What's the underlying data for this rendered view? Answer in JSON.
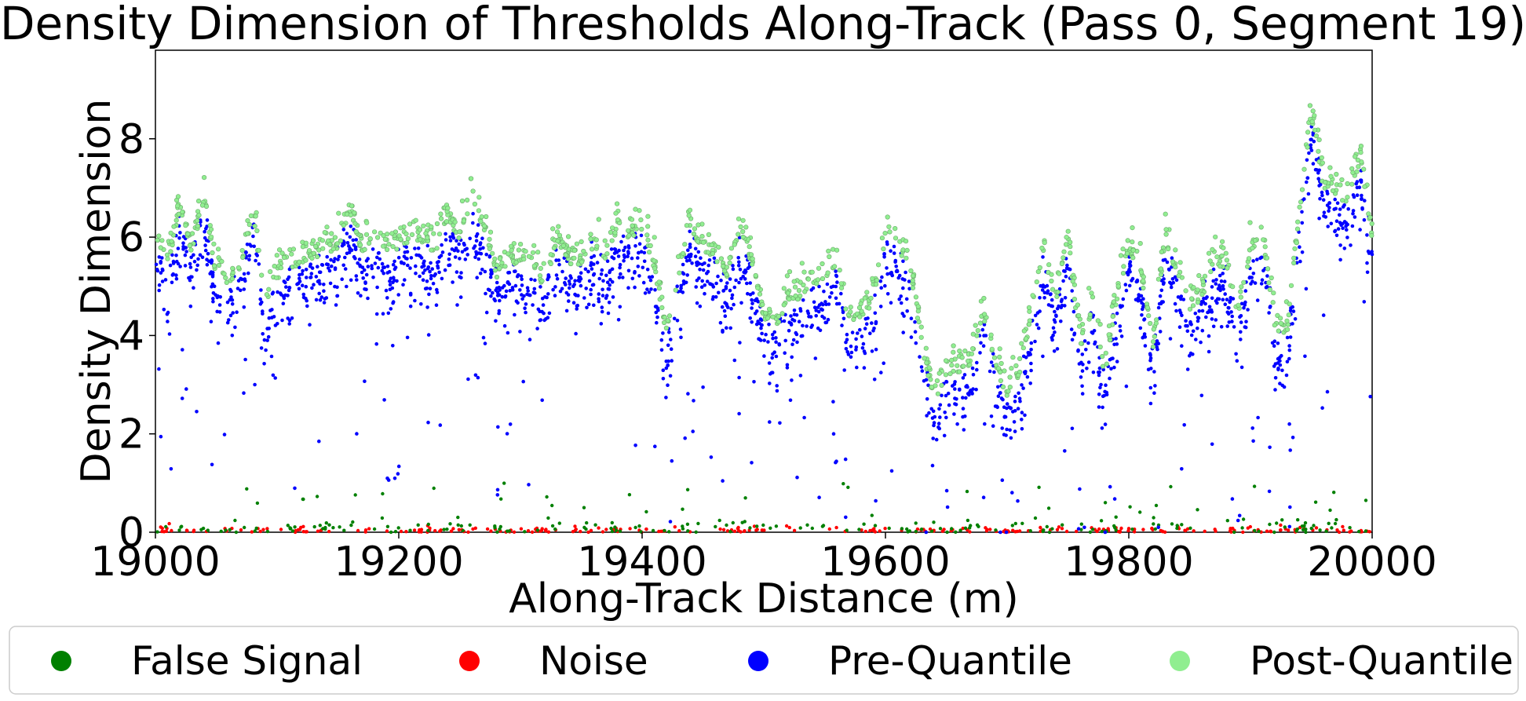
{
  "chart_data": {
    "type": "scatter",
    "title": "Density Dimension of Thresholds Along-Track (Pass 0, Segment 19)",
    "xlabel": "Along-Track Distance (m)",
    "ylabel": "Density Dimension",
    "xlim": [
      19000,
      20000
    ],
    "ylim": [
      0,
      9.8
    ],
    "xticks": [
      19000,
      19200,
      19400,
      19600,
      19800,
      20000
    ],
    "xtick_labels": [
      "19000",
      "19200",
      "19400",
      "19600",
      "19800",
      "20000"
    ],
    "yticks": [
      0,
      2,
      4,
      6,
      8
    ],
    "ytick_labels": [
      "0",
      "2",
      "4",
      "6",
      "8"
    ],
    "grid": false,
    "legend_placement": "bottom-outside",
    "series": [
      {
        "name": "False Signal",
        "color": "#008000",
        "marker": "dot"
      },
      {
        "name": "Noise",
        "color": "#ff0000",
        "marker": "dot"
      },
      {
        "name": "Pre-Quantile",
        "color": "#0000ff",
        "marker": "dot"
      },
      {
        "name": "Post-Quantile",
        "color": "#90ee90",
        "marker": "dot"
      }
    ],
    "trend": {
      "x": [
        19000,
        19010,
        19020,
        19030,
        19040,
        19050,
        19060,
        19070,
        19080,
        19090,
        19100,
        19110,
        19120,
        19130,
        19140,
        19150,
        19160,
        19170,
        19180,
        19190,
        19200,
        19210,
        19220,
        19230,
        19240,
        19250,
        19260,
        19270,
        19280,
        19290,
        19300,
        19310,
        19320,
        19330,
        19340,
        19350,
        19360,
        19370,
        19380,
        19390,
        19400,
        19410,
        19420,
        19430,
        19440,
        19450,
        19460,
        19470,
        19480,
        19490,
        19500,
        19510,
        19520,
        19530,
        19540,
        19550,
        19560,
        19570,
        19580,
        19590,
        19600,
        19610,
        19620,
        19630,
        19640,
        19650,
        19660,
        19670,
        19680,
        19690,
        19700,
        19710,
        19720,
        19730,
        19740,
        19750,
        19760,
        19770,
        19780,
        19790,
        19800,
        19810,
        19820,
        19830,
        19840,
        19850,
        19860,
        19870,
        19880,
        19890,
        19900,
        19910,
        19920,
        19930,
        19940,
        19950,
        19960,
        19970,
        19980,
        19990,
        20000
      ],
      "y": [
        5.8,
        5.3,
        6.3,
        5.5,
        6.6,
        5.0,
        4.8,
        5.2,
        6.3,
        4.4,
        5.0,
        5.2,
        5.3,
        5.4,
        5.5,
        5.6,
        6.3,
        5.5,
        5.8,
        5.5,
        5.6,
        5.8,
        5.7,
        5.5,
        6.2,
        5.8,
        6.6,
        6.0,
        5.0,
        5.3,
        5.3,
        5.2,
        4.8,
        5.8,
        5.3,
        5.3,
        5.6,
        5.4,
        6.0,
        5.8,
        6.0,
        5.2,
        3.8,
        5.0,
        6.0,
        5.5,
        5.4,
        5.0,
        6.0,
        5.3,
        4.2,
        4.0,
        4.5,
        4.6,
        4.8,
        5.0,
        5.3,
        4.0,
        4.2,
        4.5,
        5.8,
        5.6,
        5.2,
        3.6,
        2.5,
        3.0,
        3.0,
        3.2,
        4.3,
        3.2,
        2.6,
        3.0,
        4.2,
        5.5,
        4.5,
        5.8,
        3.5,
        4.3,
        3.0,
        4.5,
        5.6,
        5.0,
        3.5,
        5.8,
        5.0,
        4.3,
        4.6,
        5.3,
        5.2,
        4.2,
        5.5,
        5.8,
        4.0,
        3.8,
        6.2,
        8.3,
        6.8,
        6.7,
        6.5,
        7.4,
        5.8
      ]
    }
  },
  "legend": {
    "items": [
      "False Signal",
      "Noise",
      "Pre-Quantile",
      "Post-Quantile"
    ]
  }
}
